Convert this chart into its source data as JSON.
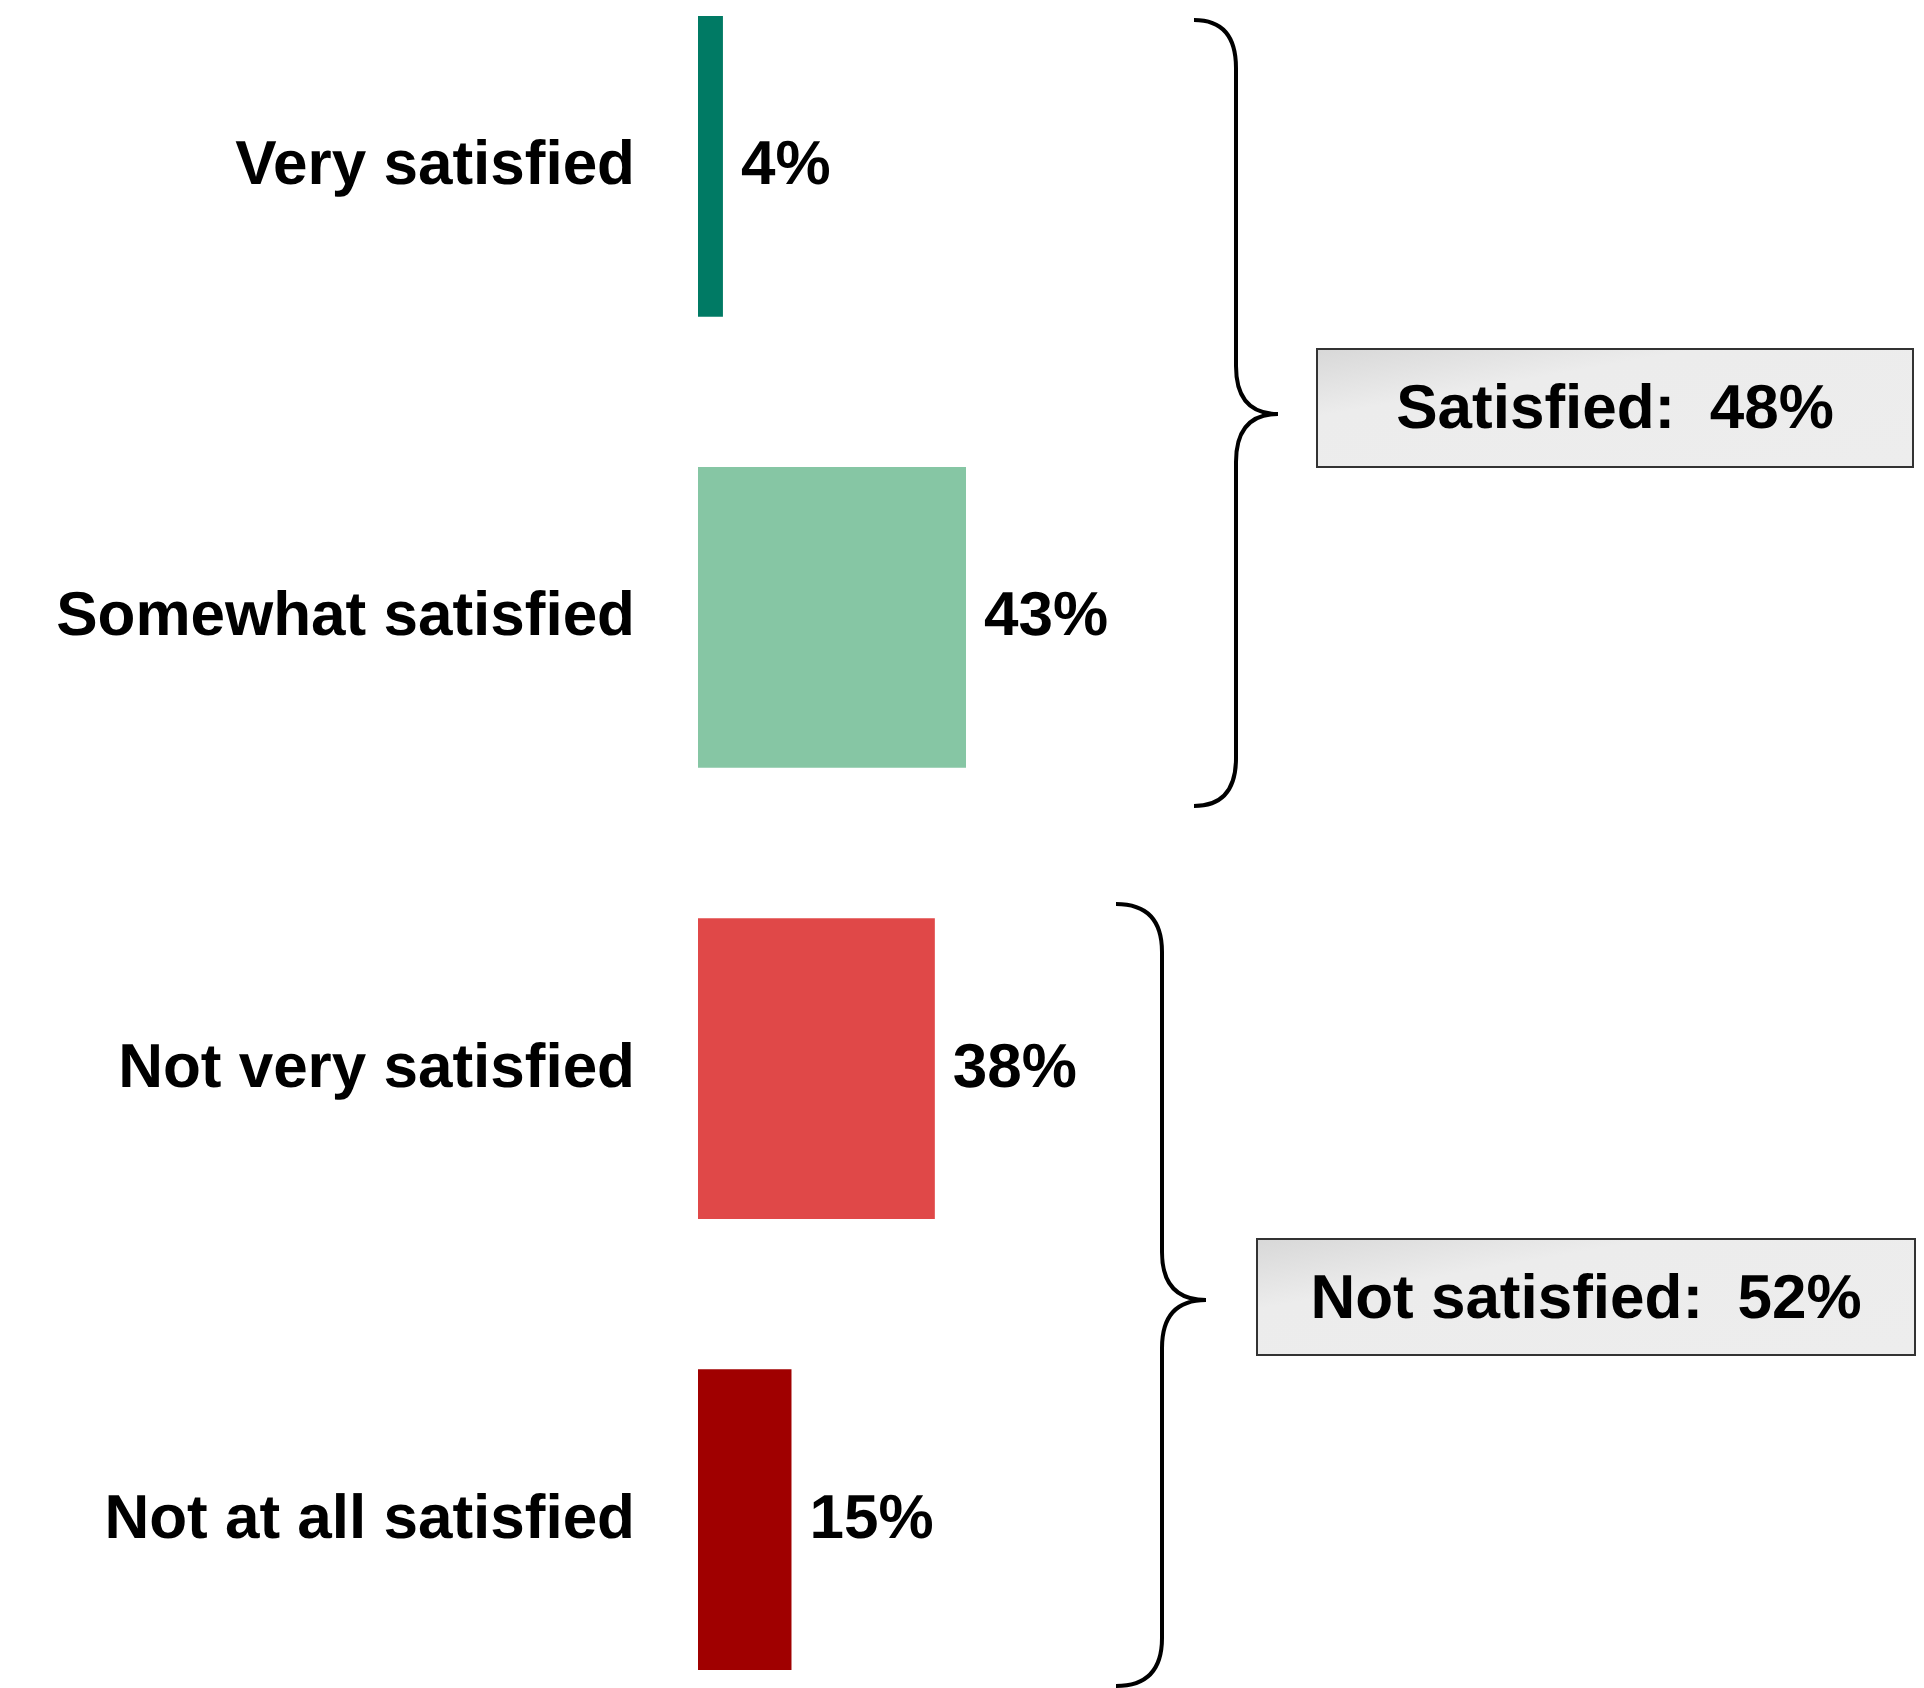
{
  "chart_data": {
    "type": "bar",
    "orientation": "horizontal",
    "categories": [
      "Very satisfied",
      "Somewhat satisfied",
      "Not very satisfied",
      "Not at all satisfied"
    ],
    "values": [
      4,
      43,
      38,
      15
    ],
    "value_labels": [
      "4%",
      "43%",
      "38%",
      "15%"
    ],
    "colors": [
      "#007a64",
      "#86c6a4",
      "#e04848",
      "#a00000"
    ],
    "annotations": [
      "Satisfied:  48%",
      "Not satisfied:  52%"
    ]
  }
}
